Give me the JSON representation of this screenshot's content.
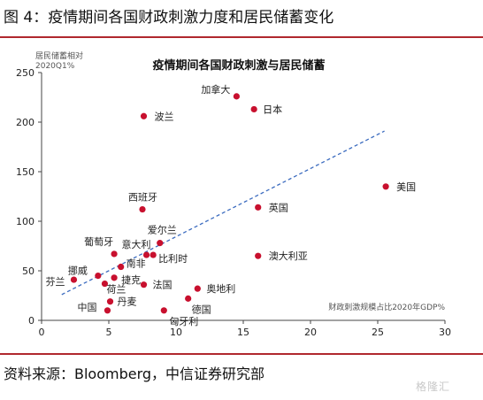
{
  "figure_title": "图 4：疫情期间各国财政刺激力度和居民储蓄变化",
  "source": "资料来源：Bloomberg，中信证券研究部",
  "watermark": "格隆汇",
  "colors": {
    "point": "#c8102e",
    "trend": "#3b6bbf",
    "rule": "#b0282e"
  },
  "chart_data": {
    "type": "scatter",
    "title": "疫情期间各国财政刺激与居民储蓄",
    "ylabel": "居民储蓄相对2020Q1%",
    "xlabel": "财政刺激规模占比2020年GDP%",
    "xlim": [
      0,
      30
    ],
    "ylim": [
      0,
      250
    ],
    "xticks": [
      0,
      5,
      10,
      15,
      20,
      25,
      30
    ],
    "yticks": [
      0,
      50,
      100,
      150,
      200,
      250
    ],
    "grid": false,
    "trendline": {
      "x": [
        1.5,
        25.5
      ],
      "y": [
        26,
        191
      ]
    },
    "points": [
      {
        "label": "加拿大",
        "x": 14.5,
        "y": 226
      },
      {
        "label": "日本",
        "x": 15.8,
        "y": 213
      },
      {
        "label": "波兰",
        "x": 7.6,
        "y": 206
      },
      {
        "label": "美国",
        "x": 25.6,
        "y": 135
      },
      {
        "label": "西班牙",
        "x": 7.5,
        "y": 112
      },
      {
        "label": "英国",
        "x": 16.1,
        "y": 114
      },
      {
        "label": "爱尔兰",
        "x": 8.8,
        "y": 78
      },
      {
        "label": "葡萄牙",
        "x": 5.4,
        "y": 67
      },
      {
        "label": "意大利",
        "x": 7.8,
        "y": 66
      },
      {
        "label": "比利时",
        "x": 8.3,
        "y": 66
      },
      {
        "label": "澳大利亚",
        "x": 16.1,
        "y": 65
      },
      {
        "label": "南非",
        "x": 5.9,
        "y": 54
      },
      {
        "label": "挪威",
        "x": 4.2,
        "y": 45
      },
      {
        "label": "芬兰",
        "x": 2.4,
        "y": 41
      },
      {
        "label": "捷克",
        "x": 5.4,
        "y": 43
      },
      {
        "label": "荷兰",
        "x": 4.7,
        "y": 37
      },
      {
        "label": "法国",
        "x": 7.6,
        "y": 36
      },
      {
        "label": "奥地利",
        "x": 11.6,
        "y": 32
      },
      {
        "label": "丹麦",
        "x": 5.1,
        "y": 19
      },
      {
        "label": "德国",
        "x": 10.9,
        "y": 22
      },
      {
        "label": "中国",
        "x": 4.9,
        "y": 10
      },
      {
        "label": "匈牙利",
        "x": 9.1,
        "y": 10
      }
    ]
  }
}
